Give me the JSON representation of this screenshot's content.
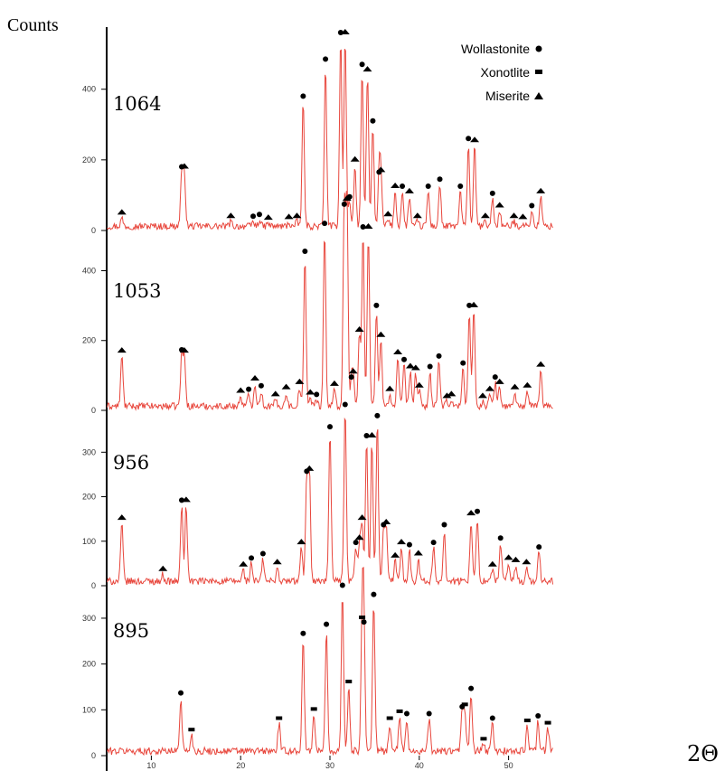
{
  "chart_data": {
    "type": "line",
    "ylabel": "Counts",
    "xlabel": "2Θ",
    "x_ticks": [
      10,
      20,
      30,
      40,
      50
    ],
    "xlim": [
      5,
      55
    ],
    "line_color": "#e8463c",
    "legend": [
      {
        "name": "Wollastonite",
        "marker": "circle"
      },
      {
        "name": "Xonotlite",
        "marker": "square"
      },
      {
        "name": "Miserite",
        "marker": "triangle"
      }
    ],
    "panels": [
      {
        "label": "1064",
        "yticks": [
          0,
          200,
          400
        ],
        "ylim": [
          0,
          540
        ],
        "baseline": 12,
        "peaks": [
          {
            "x": 6.7,
            "y": 35,
            "m": "triangle"
          },
          {
            "x": 13.4,
            "y": 165,
            "m": "circle"
          },
          {
            "x": 13.7,
            "y": 165,
            "m": "triangle"
          },
          {
            "x": 18.9,
            "y": 25,
            "m": "triangle"
          },
          {
            "x": 21.4,
            "y": 25,
            "m": "circle"
          },
          {
            "x": 22.1,
            "y": 30,
            "m": "circle"
          },
          {
            "x": 23.1,
            "y": 20,
            "m": "triangle"
          },
          {
            "x": 25.4,
            "y": 22,
            "m": "triangle"
          },
          {
            "x": 26.3,
            "y": 25,
            "m": "triangle"
          },
          {
            "x": 27.0,
            "y": 365,
            "m": "circle"
          },
          {
            "x": 29.5,
            "y": 470,
            "m": "circle"
          },
          {
            "x": 31.2,
            "y": 545,
            "m": "circle"
          },
          {
            "x": 31.7,
            "y": 545,
            "m": "triangle"
          },
          {
            "x": 32.2,
            "y": 80,
            "m": "circle"
          },
          {
            "x": 32.8,
            "y": 185,
            "m": "triangle"
          },
          {
            "x": 33.6,
            "y": 455,
            "m": "circle"
          },
          {
            "x": 34.2,
            "y": 440,
            "m": "triangle"
          },
          {
            "x": 34.8,
            "y": 295,
            "m": "circle"
          },
          {
            "x": 35.5,
            "y": 150,
            "m": "circle"
          },
          {
            "x": 35.7,
            "y": 155,
            "m": "triangle"
          },
          {
            "x": 36.5,
            "y": 30,
            "m": "triangle"
          },
          {
            "x": 37.3,
            "y": 110,
            "m": "triangle"
          },
          {
            "x": 38.1,
            "y": 110,
            "m": "circle"
          },
          {
            "x": 38.9,
            "y": 95,
            "m": "triangle"
          },
          {
            "x": 39.8,
            "y": 25,
            "m": "triangle"
          },
          {
            "x": 41.0,
            "y": 110,
            "m": "circle"
          },
          {
            "x": 42.3,
            "y": 130,
            "m": "circle"
          },
          {
            "x": 44.6,
            "y": 110,
            "m": "circle"
          },
          {
            "x": 45.5,
            "y": 245,
            "m": "circle"
          },
          {
            "x": 46.2,
            "y": 240,
            "m": "triangle"
          },
          {
            "x": 47.4,
            "y": 25,
            "m": "triangle"
          },
          {
            "x": 48.2,
            "y": 90,
            "m": "circle"
          },
          {
            "x": 49.0,
            "y": 55,
            "m": "triangle"
          },
          {
            "x": 50.6,
            "y": 25,
            "m": "triangle"
          },
          {
            "x": 51.6,
            "y": 22,
            "m": "triangle"
          },
          {
            "x": 52.6,
            "y": 55,
            "m": "circle"
          },
          {
            "x": 53.6,
            "y": 95,
            "m": "triangle"
          }
        ]
      },
      {
        "label": "1053",
        "yticks": [
          0,
          200,
          400
        ],
        "ylim": [
          0,
          510
        ],
        "baseline": 12,
        "peaks": [
          {
            "x": 6.7,
            "y": 155,
            "m": "triangle"
          },
          {
            "x": 13.4,
            "y": 158,
            "m": "circle"
          },
          {
            "x": 13.7,
            "y": 155,
            "m": "triangle"
          },
          {
            "x": 20.0,
            "y": 40,
            "m": "triangle"
          },
          {
            "x": 20.9,
            "y": 45,
            "m": "circle"
          },
          {
            "x": 21.6,
            "y": 75,
            "m": "triangle"
          },
          {
            "x": 22.3,
            "y": 55,
            "m": "circle"
          },
          {
            "x": 23.9,
            "y": 30,
            "m": "triangle"
          },
          {
            "x": 25.1,
            "y": 50,
            "m": "triangle"
          },
          {
            "x": 26.6,
            "y": 65,
            "m": "triangle"
          },
          {
            "x": 27.2,
            "y": 440,
            "m": "circle"
          },
          {
            "x": 27.8,
            "y": 35,
            "m": "triangle"
          },
          {
            "x": 28.5,
            "y": 30,
            "m": "circle"
          },
          {
            "x": 29.4,
            "y": 520,
            "m": "circle"
          },
          {
            "x": 30.5,
            "y": 60,
            "m": "triangle"
          },
          {
            "x": 31.6,
            "y": 575,
            "m": "circle"
          },
          {
            "x": 31.9,
            "y": 590,
            "m": "triangle"
          },
          {
            "x": 32.4,
            "y": 80,
            "m": "circle"
          },
          {
            "x": 32.6,
            "y": 95,
            "m": "triangle"
          },
          {
            "x": 33.3,
            "y": 215,
            "m": "triangle"
          },
          {
            "x": 33.7,
            "y": 510,
            "m": "circle"
          },
          {
            "x": 34.3,
            "y": 510,
            "m": "triangle"
          },
          {
            "x": 35.2,
            "y": 285,
            "m": "circle"
          },
          {
            "x": 35.7,
            "y": 200,
            "m": "triangle"
          },
          {
            "x": 36.7,
            "y": 45,
            "m": "triangle"
          },
          {
            "x": 37.6,
            "y": 150,
            "m": "triangle"
          },
          {
            "x": 38.3,
            "y": 130,
            "m": "circle"
          },
          {
            "x": 39.0,
            "y": 110,
            "m": "triangle"
          },
          {
            "x": 39.6,
            "y": 105,
            "m": "triangle"
          },
          {
            "x": 40.0,
            "y": 55,
            "m": "triangle"
          },
          {
            "x": 41.2,
            "y": 110,
            "m": "circle"
          },
          {
            "x": 42.2,
            "y": 140,
            "m": "circle"
          },
          {
            "x": 43.1,
            "y": 25,
            "m": "triangle"
          },
          {
            "x": 43.6,
            "y": 30,
            "m": "triangle"
          },
          {
            "x": 44.9,
            "y": 120,
            "m": "circle"
          },
          {
            "x": 45.6,
            "y": 285,
            "m": "circle"
          },
          {
            "x": 46.1,
            "y": 285,
            "m": "triangle"
          },
          {
            "x": 47.1,
            "y": 25,
            "m": "triangle"
          },
          {
            "x": 47.9,
            "y": 45,
            "m": "triangle"
          },
          {
            "x": 48.5,
            "y": 80,
            "m": "circle"
          },
          {
            "x": 49.0,
            "y": 65,
            "m": "triangle"
          },
          {
            "x": 50.7,
            "y": 50,
            "m": "triangle"
          },
          {
            "x": 52.1,
            "y": 55,
            "m": "triangle"
          },
          {
            "x": 53.6,
            "y": 115,
            "m": "triangle"
          }
        ]
      },
      {
        "label": "956",
        "yticks": [
          0,
          100,
          200,
          300
        ],
        "ylim": [
          0,
          390
        ],
        "baseline": 10,
        "peaks": [
          {
            "x": 6.7,
            "y": 140,
            "m": "triangle"
          },
          {
            "x": 11.3,
            "y": 25,
            "m": "triangle"
          },
          {
            "x": 13.4,
            "y": 180,
            "m": "circle"
          },
          {
            "x": 13.9,
            "y": 180,
            "m": "triangle"
          },
          {
            "x": 20.3,
            "y": 35,
            "m": "triangle"
          },
          {
            "x": 21.2,
            "y": 50,
            "m": "circle"
          },
          {
            "x": 22.5,
            "y": 60,
            "m": "circle"
          },
          {
            "x": 24.1,
            "y": 40,
            "m": "triangle"
          },
          {
            "x": 26.8,
            "y": 85,
            "m": "triangle"
          },
          {
            "x": 27.4,
            "y": 245,
            "m": "circle"
          },
          {
            "x": 27.7,
            "y": 250,
            "m": "triangle"
          },
          {
            "x": 30.0,
            "y": 345,
            "m": "circle"
          },
          {
            "x": 31.7,
            "y": 395,
            "m": "circle"
          },
          {
            "x": 32.9,
            "y": 85,
            "m": "circle"
          },
          {
            "x": 33.3,
            "y": 95,
            "m": "triangle"
          },
          {
            "x": 33.6,
            "y": 140,
            "m": "triangle"
          },
          {
            "x": 34.1,
            "y": 325,
            "m": "circle"
          },
          {
            "x": 34.7,
            "y": 325,
            "m": "triangle"
          },
          {
            "x": 35.3,
            "y": 370,
            "m": "circle"
          },
          {
            "x": 36.0,
            "y": 125,
            "m": "circle"
          },
          {
            "x": 36.3,
            "y": 130,
            "m": "triangle"
          },
          {
            "x": 37.3,
            "y": 55,
            "m": "triangle"
          },
          {
            "x": 38.0,
            "y": 85,
            "m": "triangle"
          },
          {
            "x": 38.9,
            "y": 80,
            "m": "circle"
          },
          {
            "x": 39.9,
            "y": 60,
            "m": "triangle"
          },
          {
            "x": 41.6,
            "y": 85,
            "m": "circle"
          },
          {
            "x": 42.8,
            "y": 125,
            "m": "circle"
          },
          {
            "x": 45.8,
            "y": 150,
            "m": "triangle"
          },
          {
            "x": 46.5,
            "y": 155,
            "m": "circle"
          },
          {
            "x": 48.2,
            "y": 35,
            "m": "triangle"
          },
          {
            "x": 49.1,
            "y": 95,
            "m": "circle"
          },
          {
            "x": 50.0,
            "y": 50,
            "m": "triangle"
          },
          {
            "x": 50.8,
            "y": 45,
            "m": "triangle"
          },
          {
            "x": 52.0,
            "y": 40,
            "m": "triangle"
          },
          {
            "x": 53.4,
            "y": 75,
            "m": "circle"
          }
        ]
      },
      {
        "label": "895",
        "yticks": [
          0,
          100,
          200,
          300
        ],
        "ylim": [
          0,
          365
        ],
        "baseline": 10,
        "peaks": [
          {
            "x": 13.3,
            "y": 125,
            "m": "circle"
          },
          {
            "x": 14.5,
            "y": 45,
            "m": "square"
          },
          {
            "x": 24.3,
            "y": 70,
            "m": "square"
          },
          {
            "x": 27.0,
            "y": 255,
            "m": "circle"
          },
          {
            "x": 28.2,
            "y": 90,
            "m": "square"
          },
          {
            "x": 29.6,
            "y": 275,
            "m": "circle"
          },
          {
            "x": 31.4,
            "y": 360,
            "m": "circle"
          },
          {
            "x": 32.1,
            "y": 150,
            "m": "square"
          },
          {
            "x": 33.6,
            "y": 290,
            "m": "square"
          },
          {
            "x": 33.8,
            "y": 280,
            "m": "circle"
          },
          {
            "x": 34.9,
            "y": 340,
            "m": "circle"
          },
          {
            "x": 36.7,
            "y": 70,
            "m": "square"
          },
          {
            "x": 37.8,
            "y": 85,
            "m": "square"
          },
          {
            "x": 38.6,
            "y": 80,
            "m": "circle"
          },
          {
            "x": 41.1,
            "y": 80,
            "m": "circle"
          },
          {
            "x": 44.8,
            "y": 95,
            "m": "circle"
          },
          {
            "x": 45.1,
            "y": 100,
            "m": "square"
          },
          {
            "x": 45.8,
            "y": 135,
            "m": "circle"
          },
          {
            "x": 47.2,
            "y": 25,
            "m": "square"
          },
          {
            "x": 48.2,
            "y": 70,
            "m": "circle"
          },
          {
            "x": 52.1,
            "y": 65,
            "m": "square"
          },
          {
            "x": 53.3,
            "y": 75,
            "m": "circle"
          },
          {
            "x": 54.4,
            "y": 60,
            "m": "square"
          }
        ]
      }
    ]
  }
}
